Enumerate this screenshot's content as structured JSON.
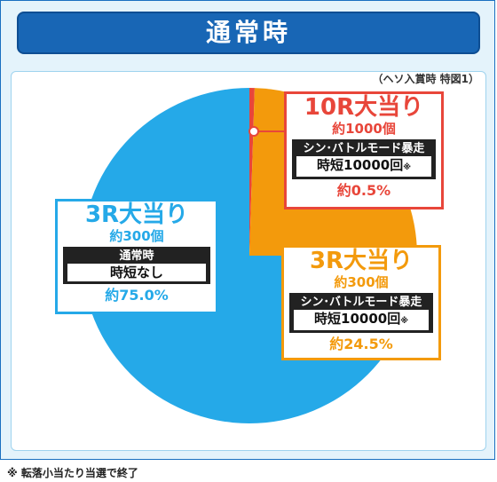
{
  "title": "通常時",
  "note_top": "（ヘソ入賞時 特図1）",
  "colors": {
    "blue": "#25a9e8",
    "orange": "#f39a0c",
    "red": "#e8463a",
    "navy": "#1866b5"
  },
  "chart_data": {
    "type": "pie",
    "slices": [
      {
        "label": "10R大当り",
        "value": 0.5,
        "color": "#e8463a"
      },
      {
        "label": "3R大当り",
        "value": 24.5,
        "color": "#f39a0c"
      },
      {
        "label": "3R大当り",
        "value": 75.0,
        "color": "#25a9e8"
      }
    ]
  },
  "boxes": {
    "r10": {
      "title": "10R大当り",
      "count": "約1000個",
      "mode": "シン･バトルモード暴走",
      "jitan": "時短10000回",
      "mark": "※",
      "pct": "約0.5%"
    },
    "r3_orange": {
      "title": "3R大当り",
      "count": "約300個",
      "mode": "シン･バトルモード暴走",
      "jitan": "時短10000回",
      "mark": "※",
      "pct": "約24.5%"
    },
    "r3_blue": {
      "title": "3R大当り",
      "count": "約300個",
      "mode": "通常時",
      "jitan": "時短なし",
      "pct": "約75.0%"
    }
  },
  "footer": "※ 転落小当たり当選で終了"
}
